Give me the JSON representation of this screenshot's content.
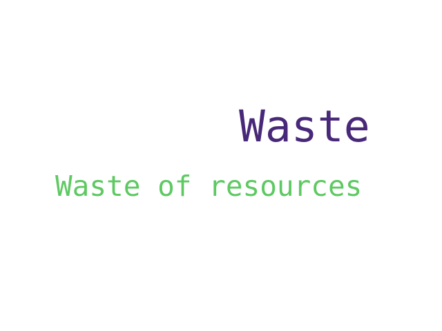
{
  "words": [
    {
      "text": "Waste",
      "color": "#482878"
    },
    {
      "text": "Waste of resources",
      "color": "#5ec962"
    }
  ]
}
